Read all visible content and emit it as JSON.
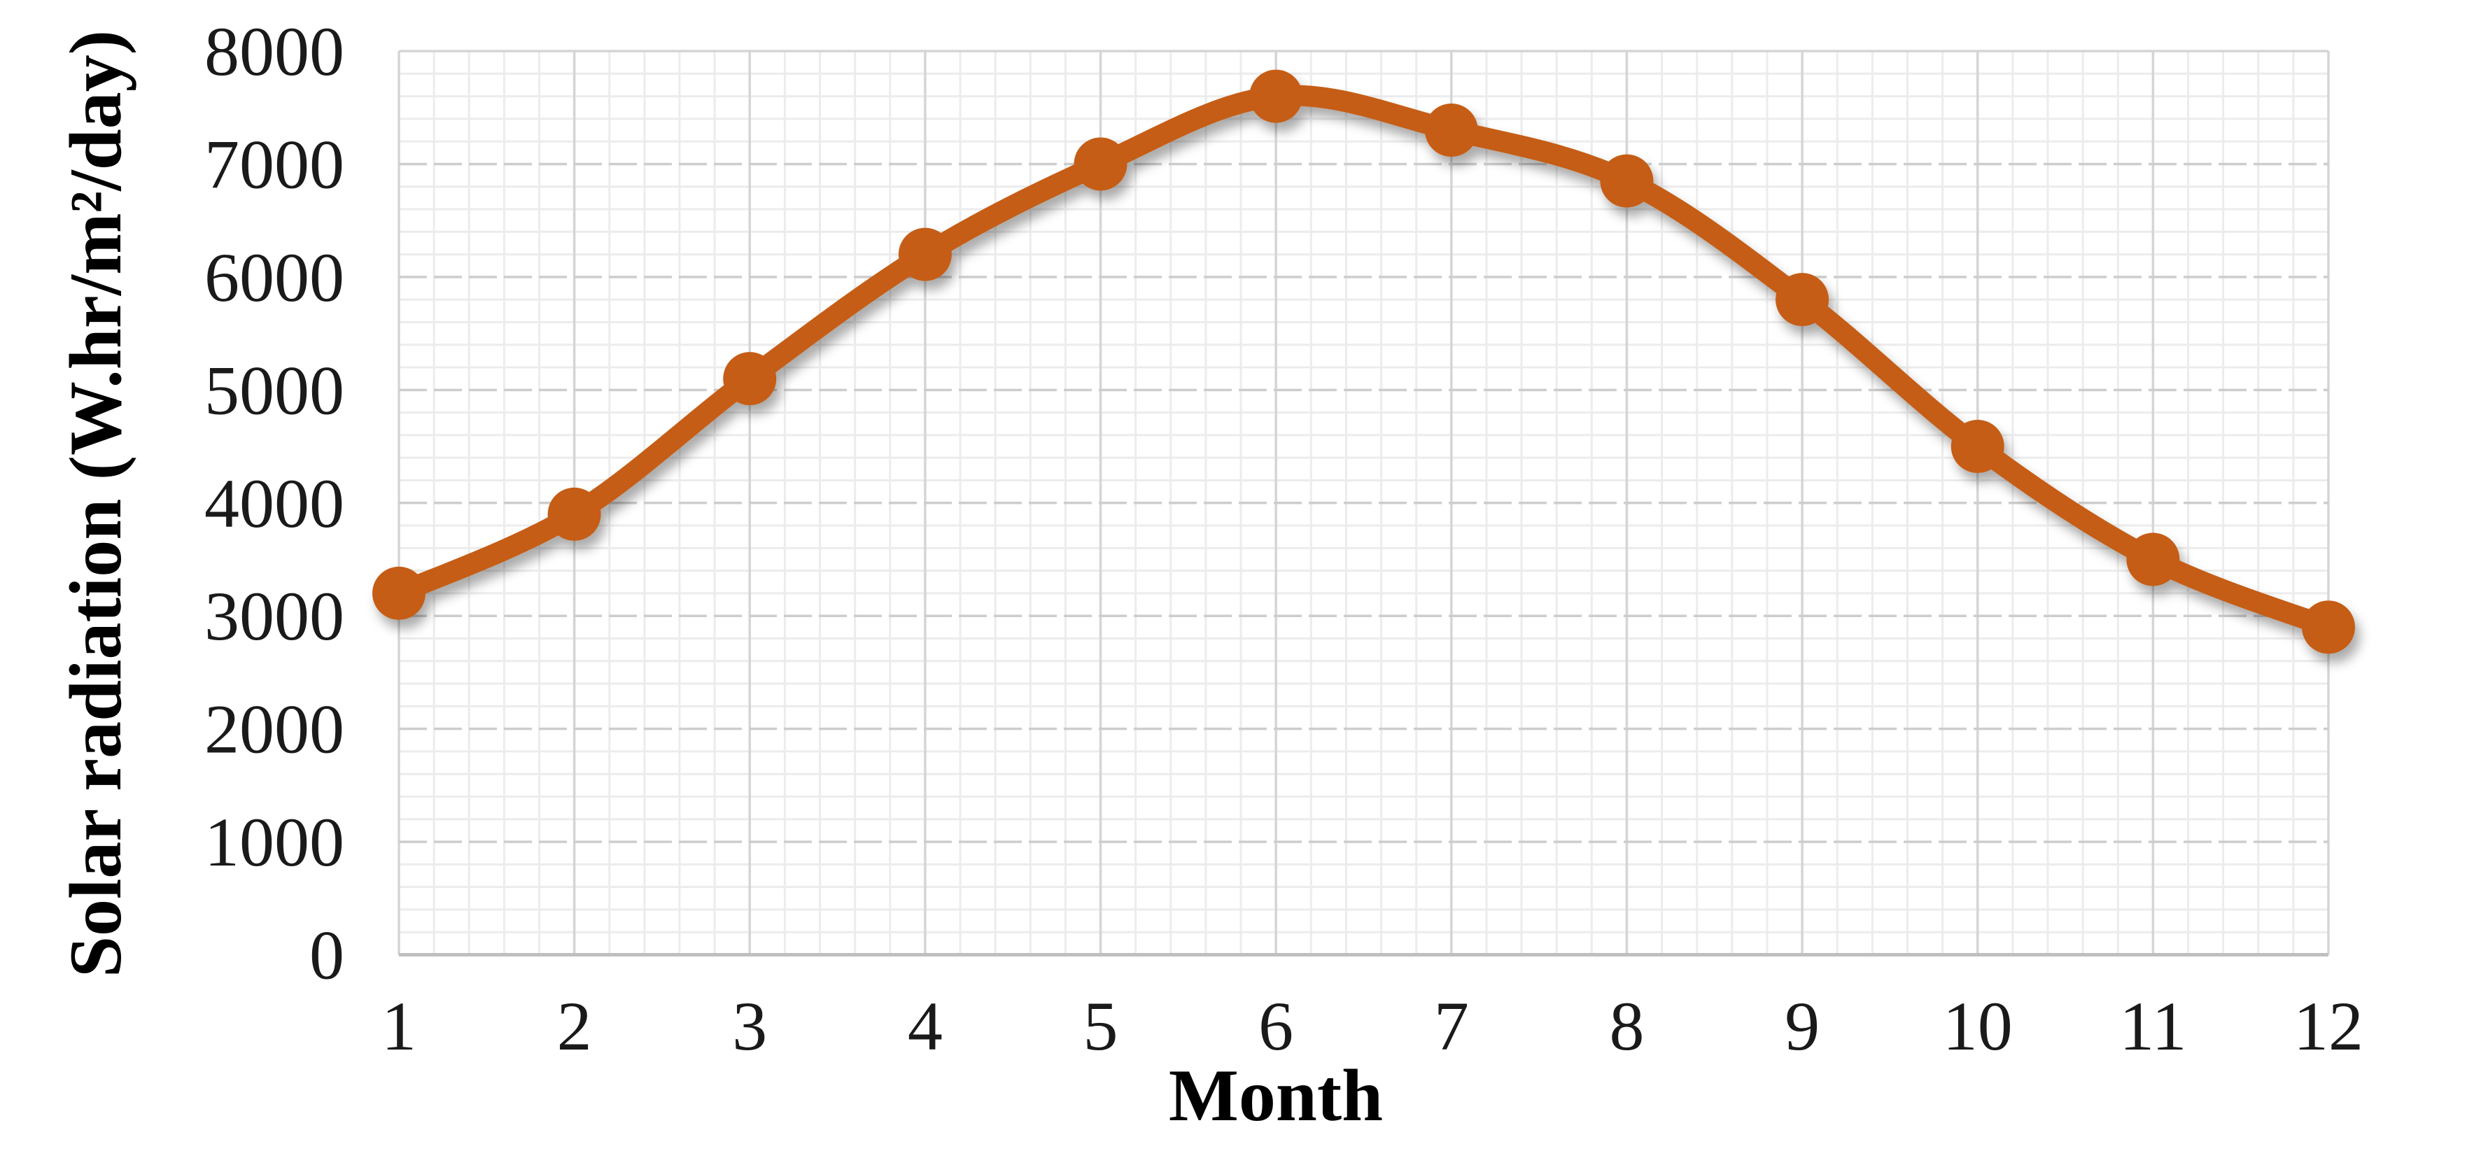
{
  "chart_data": {
    "type": "line",
    "title": "",
    "xlabel": "Month",
    "ylabel": "Solar radiation (W.hr/m²/day)",
    "categories": [
      "1",
      "2",
      "3",
      "4",
      "5",
      "6",
      "7",
      "8",
      "9",
      "10",
      "11",
      "12"
    ],
    "series": [
      {
        "name": "",
        "values": [
          3200,
          3900,
          5100,
          6200,
          7000,
          7600,
          7300,
          6850,
          5800,
          4500,
          3500,
          2900
        ]
      }
    ],
    "ylim": [
      0,
      8000
    ],
    "yticks": [
      0,
      1000,
      2000,
      3000,
      4000,
      5000,
      6000,
      7000,
      8000
    ],
    "y_major_unit": 1000,
    "y_minor_unit": 200,
    "x_minors_per_interval": 4,
    "grid": "major-and-minor",
    "gridline_style_major_horizontal": "dashed",
    "legend_position": "none",
    "line_smoothed": true,
    "marker": "circle"
  },
  "styles": {
    "series_color": "#C55D13",
    "minor_grid_color": "#ECECEC",
    "major_grid_color": "#CDCDCD",
    "vertical_major_grid_color": "#D5D5D5",
    "axis_line_color": "#BFBFBF",
    "text_color": "#1a1a1a",
    "background_color": "#FFFFFF"
  }
}
